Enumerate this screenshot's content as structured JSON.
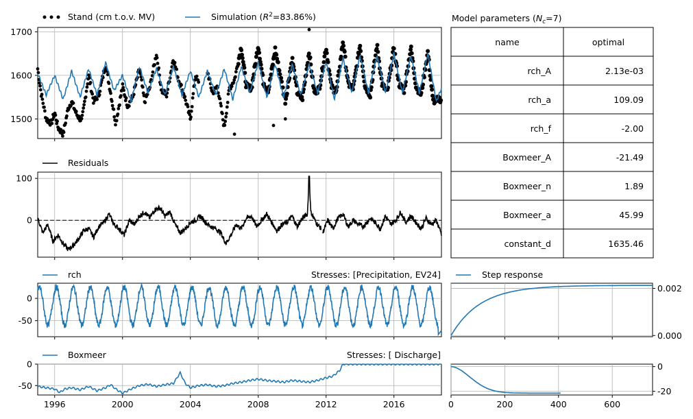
{
  "colors": {
    "sim": "#1f77b4",
    "obs": "#000000",
    "grid": "#b0b0b0"
  },
  "chart_data": [
    {
      "type": "line",
      "panel": "main",
      "series": [
        {
          "name": "Stand (cm t.o.v. MV)",
          "style": "dots"
        },
        {
          "name": "Simulation (R²=83.86%)",
          "style": "line"
        }
      ],
      "legend": [
        "Stand (cm t.o.v. MV)",
        "Simulation ("
      ],
      "legend_sim_tail": "=83.86%)",
      "yticks": [
        1500,
        1600,
        1700
      ],
      "ylim": [
        1455,
        1710
      ],
      "xlim": [
        1995.0,
        2018.8
      ],
      "sim_x": [
        1995.0,
        1995.5,
        1996.0,
        1996.5,
        1997.0,
        1997.5,
        1998.0,
        1998.5,
        1999.0,
        1999.5,
        2000.0,
        2000.5,
        2001.0,
        2001.5,
        2002.0,
        2002.5,
        2003.0,
        2003.5,
        2004.0,
        2004.5,
        2005.0,
        2005.5,
        2006.0,
        2006.5,
        2007.0,
        2007.5,
        2008.0,
        2008.5,
        2009.0,
        2009.5,
        2010.0,
        2010.5,
        2011.0,
        2011.5,
        2012.0,
        2012.5,
        2013.0,
        2013.5,
        2014.0,
        2014.5,
        2015.0,
        2015.5,
        2016.0,
        2016.5,
        2017.0,
        2017.5,
        2018.0,
        2018.5,
        2018.8
      ],
      "sim_y": [
        1605,
        1555,
        1600,
        1545,
        1610,
        1550,
        1615,
        1555,
        1630,
        1565,
        1600,
        1540,
        1620,
        1560,
        1615,
        1555,
        1620,
        1555,
        1610,
        1550,
        1610,
        1555,
        1615,
        1545,
        1620,
        1560,
        1630,
        1550,
        1625,
        1550,
        1625,
        1555,
        1625,
        1560,
        1630,
        1545,
        1640,
        1560,
        1645,
        1560,
        1645,
        1560,
        1650,
        1560,
        1645,
        1560,
        1650,
        1540,
        1570
      ],
      "obs_x": [
        1995.0,
        1995.2,
        1995.5,
        1995.8,
        1996.0,
        1996.2,
        1996.5,
        1996.8,
        1997.0,
        1997.3,
        1997.6,
        1998.0,
        1998.3,
        1998.6,
        1999.0,
        1999.3,
        1999.6,
        2000.0,
        2000.3,
        2000.6,
        2001.0,
        2001.3,
        2001.6,
        2002.0,
        2002.3,
        2002.6,
        2003.0,
        2003.3,
        2003.6,
        2004.0,
        2004.3,
        2004.6,
        2005.0,
        2005.3,
        2005.6,
        2006.0,
        2006.3,
        2006.6,
        2007.0,
        2007.3,
        2007.6,
        2008.0,
        2008.3,
        2008.6,
        2009.0,
        2009.3,
        2009.6,
        2010.0,
        2010.3,
        2010.6,
        2011.0,
        2011.3,
        2011.6,
        2012.0,
        2012.3,
        2012.6,
        2013.0,
        2013.3,
        2013.6,
        2014.0,
        2014.3,
        2014.6,
        2015.0,
        2015.3,
        2015.6,
        2016.0,
        2016.3,
        2016.6,
        2017.0,
        2017.3,
        2017.6,
        2018.0,
        2018.3,
        2018.6
      ],
      "obs_y": [
        1615,
        1560,
        1500,
        1490,
        1515,
        1480,
        1465,
        1525,
        1540,
        1510,
        1495,
        1600,
        1540,
        1555,
        1625,
        1560,
        1490,
        1575,
        1530,
        1550,
        1615,
        1540,
        1570,
        1650,
        1565,
        1555,
        1640,
        1590,
        1560,
        1500,
        1600,
        1570,
        1610,
        1560,
        1575,
        1480,
        1570,
        1590,
        1665,
        1575,
        1570,
        1670,
        1585,
        1565,
        1660,
        1600,
        1540,
        1640,
        1560,
        1545,
        1655,
        1560,
        1570,
        1665,
        1575,
        1560,
        1680,
        1580,
        1570,
        1670,
        1575,
        1555,
        1670,
        1580,
        1560,
        1665,
        1580,
        1565,
        1665,
        1575,
        1555,
        1655,
        1540,
        1545
      ],
      "obs_extra": [
        [
          2008.9,
          1485
        ],
        [
          2009.6,
          1500
        ],
        [
          2011.0,
          1705
        ],
        [
          2006.6,
          1465
        ]
      ]
    },
    {
      "type": "line",
      "panel": "residuals",
      "series": [
        {
          "name": "Residuals"
        }
      ],
      "yticks": [
        0,
        100
      ],
      "ylim": [
        -88,
        115
      ],
      "x": [
        1995.0,
        1995.3,
        1995.6,
        1995.9,
        1996.2,
        1996.5,
        1996.8,
        1997.1,
        1997.4,
        1997.7,
        1998.0,
        1998.3,
        1998.6,
        1998.9,
        1999.2,
        1999.5,
        1999.8,
        2000.1,
        2000.4,
        2000.7,
        2001.0,
        2001.3,
        2001.6,
        2001.9,
        2002.2,
        2002.5,
        2002.8,
        2003.1,
        2003.4,
        2003.7,
        2004.0,
        2004.3,
        2004.6,
        2004.9,
        2005.2,
        2005.5,
        2005.8,
        2006.1,
        2006.4,
        2006.7,
        2007.0,
        2007.3,
        2007.6,
        2007.9,
        2008.2,
        2008.5,
        2008.8,
        2009.1,
        2009.4,
        2009.7,
        2010.0,
        2010.3,
        2010.6,
        2010.9,
        2011.0,
        2011.1,
        2011.4,
        2011.7
      ],
      "y": [
        5,
        -30,
        -10,
        -50,
        -35,
        -55,
        -70,
        -60,
        -45,
        -25,
        -20,
        -40,
        -15,
        -5,
        15,
        -10,
        -20,
        -35,
        0,
        -10,
        10,
        20,
        5,
        25,
        30,
        10,
        20,
        -10,
        -30,
        -20,
        -5,
        0,
        10,
        -5,
        -15,
        -20,
        -30,
        -55,
        -35,
        -10,
        -20,
        5,
        10,
        -15,
        0,
        15,
        -5,
        -25,
        -10,
        -5,
        10,
        -15,
        5,
        15,
        105,
        20,
        -5,
        -20
      ],
      "x2": [
        2011.8,
        2012.1,
        2012.4,
        2012.7,
        2013.0,
        2013.3,
        2013.6,
        2013.9,
        2014.2,
        2014.6,
        2014.9,
        2015.2,
        2015.5,
        2015.8,
        2016.1,
        2016.4,
        2016.7,
        2017.0,
        2017.3,
        2017.6,
        2017.9,
        2018.2,
        2018.5,
        2018.8
      ],
      "y2": [
        -30,
        0,
        -20,
        5,
        15,
        -15,
        0,
        -10,
        -15,
        5,
        -5,
        -20,
        10,
        -10,
        0,
        20,
        -5,
        10,
        -5,
        -20,
        5,
        -10,
        0,
        -35
      ]
    },
    {
      "type": "line",
      "panel": "rch",
      "series": [
        {
          "name": "rch"
        }
      ],
      "stresses": "Stresses: [Precipitation,  EV24]",
      "yticks": [
        -50,
        0
      ],
      "ylim": [
        -86,
        34
      ],
      "period": 1.0,
      "amplitude_hi": 25,
      "amplitude_lo": -60
    },
    {
      "type": "line",
      "panel": "step_rch",
      "series": [
        {
          "name": "Step response"
        }
      ],
      "yticks": [
        "0.000",
        "0.002"
      ],
      "ylim": [
        -5e-05,
        0.00222
      ],
      "xlim": [
        0,
        750
      ],
      "final": 0.00213,
      "tau": 109
    },
    {
      "type": "line",
      "panel": "boxmeer",
      "series": [
        {
          "name": "Boxmeer"
        }
      ],
      "stresses": "Stresses: [ Discharge]",
      "yticks": [
        -50,
        0
      ],
      "ylim": [
        -72,
        0
      ],
      "x": [
        1995.0,
        1995.5,
        1996.0,
        1996.3,
        1996.6,
        1997.0,
        1997.5,
        1998.0,
        1998.5,
        1999.0,
        1999.3,
        1999.6,
        2000.0,
        2000.5,
        2001.0,
        2001.5,
        2002.0,
        2002.5,
        2003.0,
        2003.4,
        2003.7,
        2004.0,
        2004.5,
        2005.0,
        2005.5,
        2006.0,
        2006.5,
        2007.0,
        2007.5,
        2008.0,
        2008.5,
        2009.0,
        2009.5,
        2010.0,
        2010.5,
        2011.0,
        2011.5,
        2012.0,
        2012.4,
        2012.8,
        2013.0,
        2014.0,
        2016.0,
        2018.8
      ],
      "y": [
        -52,
        -55,
        -58,
        -66,
        -58,
        -55,
        -60,
        -52,
        -62,
        -55,
        -48,
        -58,
        -68,
        -58,
        -50,
        -47,
        -52,
        -48,
        -45,
        -20,
        -45,
        -55,
        -50,
        -48,
        -52,
        -50,
        -45,
        -42,
        -38,
        -35,
        -38,
        -40,
        -42,
        -38,
        -40,
        -42,
        -38,
        -32,
        -28,
        -15,
        0,
        0,
        0,
        0
      ]
    },
    {
      "type": "line",
      "panel": "step_boxmeer",
      "yticks": [
        -20,
        0
      ],
      "ylim": [
        -23,
        2
      ],
      "xlim": [
        0,
        750
      ],
      "xticks": [
        0,
        200,
        400,
        600
      ],
      "final": -21.49,
      "shape_n": 1.89,
      "scale_a": 45.99,
      "xmax": 410
    }
  ],
  "xaxis": {
    "ticks": [
      "1996",
      "2000",
      "2004",
      "2008",
      "2012",
      "2016"
    ],
    "tick_years": [
      1996,
      2000,
      2004,
      2008,
      2012,
      2016
    ]
  },
  "table": {
    "title": "Model parameters (",
    "title_sym": "N",
    "title_sub": "c",
    "title_tail": "=7)",
    "headers": [
      "name",
      "optimal"
    ],
    "rows": [
      [
        "rch_A",
        "2.13e-03"
      ],
      [
        "rch_a",
        "109.09"
      ],
      [
        "rch_f",
        "-2.00"
      ],
      [
        "Boxmeer_A",
        "-21.49"
      ],
      [
        "Boxmeer_n",
        "1.89"
      ],
      [
        "Boxmeer_a",
        "45.99"
      ],
      [
        "constant_d",
        "1635.46"
      ]
    ]
  }
}
